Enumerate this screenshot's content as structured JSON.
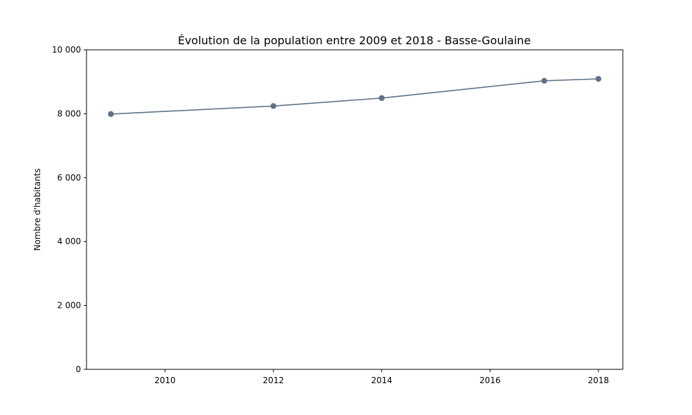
{
  "chart_data": {
    "type": "line",
    "title": "Évolution de la population entre 2009 et 2018 - Basse-Goulaine",
    "xlabel": "",
    "ylabel": "Nombre d'habitants",
    "x": [
      2009,
      2012,
      2014,
      2017,
      2018
    ],
    "series": [
      {
        "values": [
          7990,
          8240,
          8490,
          9030,
          9090
        ]
      }
    ],
    "xlim": [
      2008.55,
      2018.45
    ],
    "ylim": [
      0,
      10000
    ],
    "xticks": [
      2010,
      2012,
      2014,
      2016,
      2018
    ],
    "xtick_labels": [
      "2010",
      "2012",
      "2014",
      "2016",
      "2018"
    ],
    "yticks": [
      0,
      2000,
      4000,
      6000,
      8000,
      10000
    ],
    "ytick_labels": [
      "0",
      "2 000",
      "4 000",
      "6 000",
      "8 000",
      "10 000"
    ],
    "grid": false,
    "legend": "none",
    "line_color": "#5f7187"
  }
}
